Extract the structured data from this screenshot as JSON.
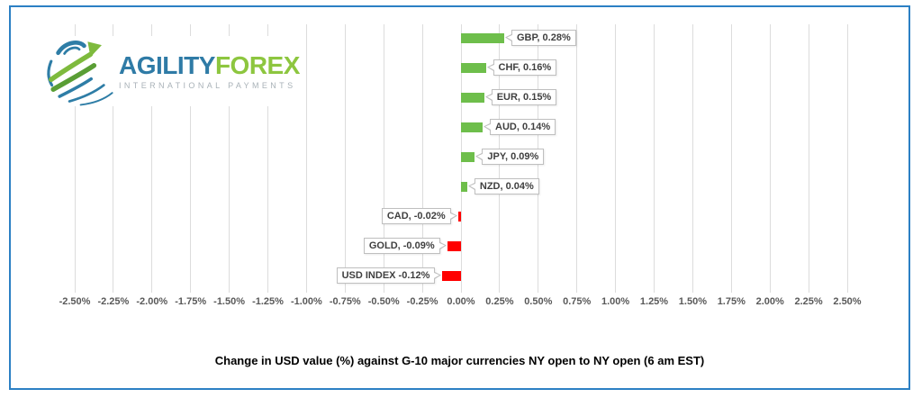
{
  "frame": {
    "border_color": "#2c80c4"
  },
  "logo": {
    "brand_primary": "AGILITY",
    "brand_secondary": "FOREX",
    "subtitle": "INTERNATIONAL PAYMENTS",
    "primary_color": "#2f7ba6",
    "secondary_color": "#8dc63f"
  },
  "chart_data": {
    "type": "bar",
    "orientation": "horizontal",
    "categories": [
      "GBP",
      "CHF",
      "EUR",
      "AUD",
      "JPY",
      "NZD",
      "CAD",
      "GOLD",
      "USD INDEX"
    ],
    "values": [
      0.28,
      0.16,
      0.15,
      0.14,
      0.09,
      0.04,
      -0.02,
      -0.09,
      -0.12
    ],
    "data_labels": [
      "GBP, 0.28%",
      "CHF, 0.16%",
      "EUR, 0.15%",
      "AUD, 0.14%",
      "JPY, 0.09%",
      "NZD, 0.04%",
      "CAD, -0.02%",
      "GOLD, -0.09%",
      "USD INDEX -0.12%"
    ],
    "x_ticks": [
      "-2.50%",
      "-2.25%",
      "-2.00%",
      "-1.75%",
      "-1.50%",
      "-1.25%",
      "-1.00%",
      "-0.75%",
      "-0.50%",
      "-0.25%",
      "0.00%",
      "0.25%",
      "0.50%",
      "0.75%",
      "1.00%",
      "1.25%",
      "1.50%",
      "1.75%",
      "2.00%",
      "2.25%",
      "2.50%"
    ],
    "xlim": [
      -2.5,
      2.5
    ],
    "grid": true,
    "legend": false,
    "positive_color": "#6ebe4b",
    "negative_color": "#ff0000",
    "tick_color": "#595959",
    "title": "Change in  USD value (%)  against  G-10 major currencies NY open to  NY open  (6 am EST)"
  }
}
